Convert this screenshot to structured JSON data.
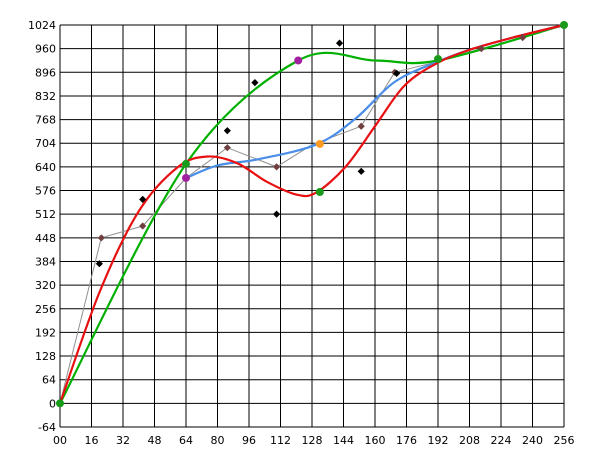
{
  "chart_data": {
    "type": "line",
    "title": "",
    "xlabel": "",
    "ylabel": "",
    "xlim": [
      0,
      256
    ],
    "ylim": [
      -64,
      1024
    ],
    "grid": true,
    "legend": "none",
    "x_ticks": [
      "00",
      "16",
      "32",
      "48",
      "64",
      "80",
      "96",
      "112",
      "128",
      "144",
      "160",
      "176",
      "192",
      "208",
      "224",
      "240",
      "256"
    ],
    "y_ticks": [
      "1024",
      "960",
      "896",
      "832",
      "768",
      "704",
      "640",
      "576",
      "512",
      "448",
      "384",
      "320",
      "256",
      "192",
      "128",
      "64",
      "0",
      "-64"
    ],
    "x_tick_values": [
      0,
      16,
      32,
      48,
      64,
      80,
      96,
      112,
      128,
      144,
      160,
      176,
      192,
      208,
      224,
      240,
      256
    ],
    "y_tick_values": [
      1024,
      960,
      896,
      832,
      768,
      704,
      640,
      576,
      512,
      448,
      384,
      320,
      256,
      192,
      128,
      64,
      0,
      -64
    ],
    "series": [
      {
        "color": "#00b000",
        "style": "smooth-curve",
        "points": [
          [
            0,
            0
          ],
          [
            64,
            648
          ],
          [
            121,
            928
          ],
          [
            160,
            928
          ],
          [
            192,
            928
          ],
          [
            256,
            1024
          ]
        ]
      },
      {
        "color": "#e81010",
        "style": "smooth-curve",
        "points": [
          [
            0,
            0
          ],
          [
            20,
            300
          ],
          [
            40,
            520
          ],
          [
            60,
            640
          ],
          [
            75,
            668
          ],
          [
            90,
            650
          ],
          [
            105,
            600
          ],
          [
            120,
            565
          ],
          [
            130,
            570
          ],
          [
            145,
            640
          ],
          [
            160,
            750
          ],
          [
            175,
            860
          ],
          [
            192,
            922
          ],
          [
            210,
            960
          ],
          [
            230,
            990
          ],
          [
            256,
            1024
          ]
        ]
      },
      {
        "color": "#4a8ee8",
        "style": "smooth-curve",
        "points": [
          [
            64,
            610
          ],
          [
            80,
            644
          ],
          [
            100,
            660
          ],
          [
            130,
            700
          ],
          [
            150,
            770
          ],
          [
            170,
            870
          ],
          [
            192,
            925
          ],
          [
            210,
            960
          ],
          [
            230,
            990
          ],
          [
            256,
            1024
          ]
        ]
      },
      {
        "color": "#909090",
        "style": "polyline",
        "points": [
          [
            0,
            0
          ],
          [
            21,
            448
          ],
          [
            42,
            480
          ],
          [
            64,
            610
          ],
          [
            85,
            692
          ],
          [
            110,
            640
          ],
          [
            128,
            700
          ],
          [
            153,
            750
          ],
          [
            170,
            896
          ],
          [
            192,
            925
          ],
          [
            214,
            960
          ],
          [
            235,
            990
          ],
          [
            256,
            1024
          ]
        ]
      }
    ],
    "markers": [
      {
        "shape": "diamond",
        "color": "#704040",
        "points": [
          [
            21,
            448
          ],
          [
            42,
            480
          ],
          [
            85,
            692
          ],
          [
            110,
            640
          ],
          [
            153,
            750
          ],
          [
            170,
            896
          ],
          [
            214,
            960
          ],
          [
            235,
            990
          ]
        ]
      },
      {
        "shape": "diamond",
        "color": "#000000",
        "points": [
          [
            20,
            378
          ],
          [
            42,
            552
          ],
          [
            85,
            738
          ],
          [
            99,
            868
          ],
          [
            110,
            512
          ],
          [
            142,
            975
          ],
          [
            153,
            628
          ],
          [
            171,
            893
          ]
        ]
      },
      {
        "shape": "circle",
        "color": "#1a9a1a",
        "points": [
          [
            0,
            0
          ],
          [
            64,
            648
          ],
          [
            132,
            572
          ],
          [
            192,
            932
          ],
          [
            256,
            1024
          ]
        ]
      },
      {
        "shape": "circle",
        "color": "#a020a0",
        "points": [
          [
            64,
            610
          ],
          [
            121,
            928
          ]
        ]
      },
      {
        "shape": "circle",
        "color": "#ff9a20",
        "points": [
          [
            132,
            702
          ]
        ]
      }
    ]
  }
}
